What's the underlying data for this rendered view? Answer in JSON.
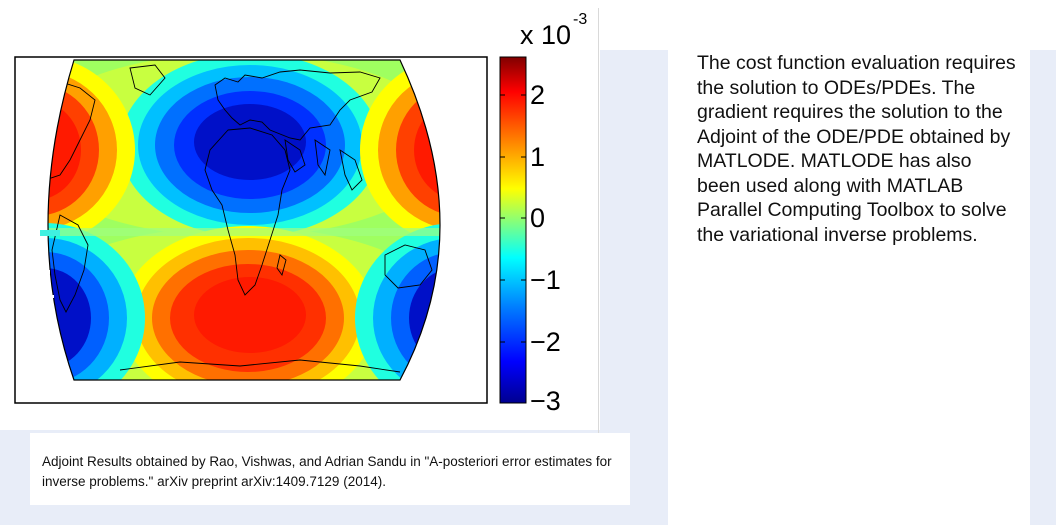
{
  "figure": {
    "colorbar": {
      "scale_label": "x 10",
      "scale_exponent": "-3",
      "ticks": [
        "2",
        "1",
        "0",
        "−1",
        "−2",
        "−3"
      ],
      "colors": [
        "#00008f",
        "#0000ff",
        "#0080ff",
        "#00ffff",
        "#80ff80",
        "#ffff00",
        "#ff8000",
        "#ff0000",
        "#800000"
      ]
    },
    "field_colors": {
      "red": "#ff1a00",
      "dark_blue": "#0010c8",
      "land_line": "#000000"
    }
  },
  "caption": "Adjoint Results obtained by Rao, Vishwas, and Adrian Sandu in \"A-posteriori error estimates for inverse problems.\" arXiv preprint arXiv:1409.7129 (2014).",
  "description": "The cost function evaluation requires the solution to ODEs/PDEs. The gradient requires the solution to the Adjoint of the ODE/PDE obtained by MATLODE. MATLODE has also been used along with MATLAB Parallel Computing Toolbox to solve the variational inverse problems.",
  "colors": {
    "slide_accent": "#e8edf8"
  }
}
